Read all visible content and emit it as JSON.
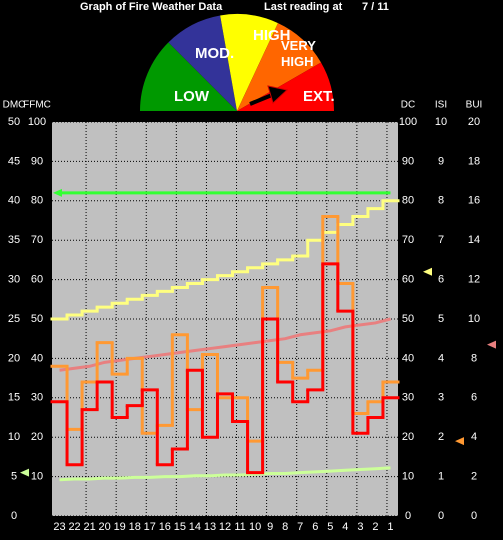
{
  "chart_data": {
    "type": "line",
    "title": "Graph of Fire Weather Data",
    "reading_label": "Last reading at",
    "reading_date": "7 / 11",
    "gauge": {
      "levels": [
        {
          "label": "LOW",
          "color": "#009900"
        },
        {
          "label": "MOD.",
          "color": "#333399"
        },
        {
          "label": "HIGH",
          "color": "#ffff00"
        },
        {
          "label": "VERY HIGH",
          "color": "#ff6600"
        },
        {
          "label": "EXT.",
          "color": "#ff0000"
        }
      ]
    },
    "categories": [
      "23",
      "22",
      "21",
      "20",
      "19",
      "18",
      "17",
      "16",
      "15",
      "14",
      "13",
      "12",
      "11",
      "10",
      "9",
      "8",
      "7",
      "6",
      "5",
      "4",
      "3",
      "2",
      "1"
    ],
    "axes": [
      {
        "label": "DMC",
        "label_color": "#ffffff",
        "color": "#80ff80",
        "lim": [
          0,
          50
        ],
        "ticks": [
          0,
          5,
          10,
          15,
          20,
          25,
          30,
          35,
          40,
          45,
          50
        ]
      },
      {
        "label": "FFMC",
        "label_color": "#33ff33",
        "color": "#33ff33",
        "lim": [
          0,
          100
        ],
        "ticks": [
          10,
          20,
          30,
          40,
          50,
          60,
          70,
          80,
          90,
          100
        ]
      },
      {
        "label": "DC",
        "label_color": "#ffffff",
        "color": "#ffff99",
        "lim": [
          0,
          100
        ],
        "ticks": [
          0,
          10,
          20,
          30,
          40,
          50,
          60,
          70,
          80,
          90,
          100
        ]
      },
      {
        "label": "ISI",
        "label_color": "#ff9944",
        "color": "#ff9944",
        "lim": [
          0,
          10
        ],
        "ticks": [
          0,
          1,
          2,
          3,
          4,
          5,
          6,
          7,
          8,
          9,
          10
        ]
      },
      {
        "label": "BUI",
        "label_color": "#ff8070",
        "color": "#ff8070",
        "lim": [
          0,
          20
        ],
        "ticks": [
          0,
          2,
          4,
          6,
          8,
          10,
          12,
          14,
          16,
          18,
          20
        ]
      }
    ],
    "grid": true,
    "series": [
      {
        "axis": 1,
        "style": "line",
        "color": "#33ff33",
        "values": [
          82,
          82,
          82,
          82,
          82,
          82,
          82,
          82,
          82,
          82,
          82,
          82,
          82,
          82,
          82,
          82,
          82,
          82,
          82,
          82,
          82,
          82,
          82
        ]
      },
      {
        "axis": 0,
        "style": "line",
        "color": "#ccff99",
        "values": [
          4.6,
          4.7,
          4.7,
          4.8,
          4.8,
          4.9,
          4.9,
          5.0,
          5.0,
          5.1,
          5.1,
          5.2,
          5.2,
          5.3,
          5.4,
          5.4,
          5.5,
          5.6,
          5.7,
          5.8,
          5.9,
          6.0,
          6.1
        ]
      },
      {
        "axis": 2,
        "style": "step",
        "color": "#ffff80",
        "values": [
          50,
          51,
          52,
          53,
          54,
          55,
          56,
          57,
          58,
          59,
          60,
          61,
          62,
          63,
          64,
          65,
          66,
          70,
          72,
          74,
          76,
          78,
          80
        ]
      },
      {
        "axis": 4,
        "style": "line",
        "color": "#e88080",
        "values": [
          7.4,
          7.5,
          7.6,
          7.8,
          7.9,
          8.0,
          8.1,
          8.2,
          8.3,
          8.4,
          8.5,
          8.6,
          8.7,
          8.8,
          8.9,
          9.0,
          9.2,
          9.3,
          9.4,
          9.6,
          9.7,
          9.8,
          10.0
        ]
      },
      {
        "axis": 3,
        "style": "step",
        "color": "#ff9933",
        "values": [
          3.8,
          2.2,
          3.4,
          4.4,
          3.6,
          4.0,
          2.1,
          2.3,
          4.6,
          2.7,
          4.1,
          3.0,
          3.0,
          1.9,
          5.8,
          3.9,
          3.5,
          3.7,
          7.6,
          5.9,
          2.6,
          2.9,
          3.4
        ]
      },
      {
        "axis": 2,
        "style": "step",
        "color": "#ff0000",
        "values": [
          29,
          13,
          27,
          34,
          25,
          28,
          32,
          13,
          17,
          37,
          20,
          31,
          24,
          11,
          50,
          34,
          29,
          32,
          64,
          52,
          21,
          25,
          30
        ]
      }
    ],
    "markers": [
      {
        "axis": 1,
        "value": 82,
        "color": "#33ff33"
      },
      {
        "axis": 0,
        "value": 5.5,
        "color": "#ccff99"
      },
      {
        "axis": 2,
        "value": 62,
        "color": "#ffff80"
      },
      {
        "axis": 3,
        "value": 1.9,
        "color": "#ff9933"
      },
      {
        "axis": 4,
        "value": 8.7,
        "color": "#e88080"
      }
    ]
  }
}
